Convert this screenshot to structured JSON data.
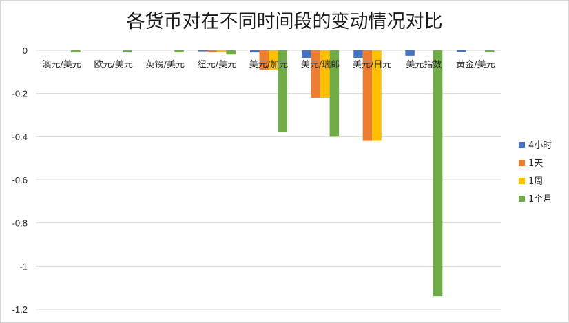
{
  "chart_data": {
    "type": "bar",
    "title": "各货币对在不同时间段的变动情况对比",
    "xlabel": "",
    "ylabel": "",
    "ylim": [
      -1.2,
      0
    ],
    "yticks": [
      "0",
      "-0.2",
      "-0.4",
      "-0.6",
      "-0.8",
      "-1",
      "-1.2"
    ],
    "grid": true,
    "legend": "right",
    "categories": [
      "澳元/美元",
      "欧元/美元",
      "英镑/美元",
      "纽元/美元",
      "美元/加元",
      "美元/瑞郎",
      "美元/日元",
      "美元指数",
      "黄金/美元"
    ],
    "series": [
      {
        "name": "4小时",
        "color": "#4472c4",
        "values": [
          0,
          0,
          0,
          -0.005,
          -0.01,
          -0.035,
          -0.035,
          -0.025,
          -0.008
        ]
      },
      {
        "name": "1天",
        "color": "#ed7d31",
        "values": [
          0,
          0,
          0,
          -0.01,
          -0.09,
          -0.22,
          -0.42,
          0,
          0
        ]
      },
      {
        "name": "1周",
        "color": "#ffc000",
        "values": [
          0,
          0,
          0,
          -0.01,
          -0.09,
          -0.22,
          -0.42,
          0,
          0
        ]
      },
      {
        "name": "1个月",
        "color": "#70ad47",
        "values": [
          -0.01,
          -0.01,
          -0.01,
          -0.02,
          -0.38,
          -0.4,
          0,
          -1.14,
          -0.01
        ]
      }
    ]
  }
}
